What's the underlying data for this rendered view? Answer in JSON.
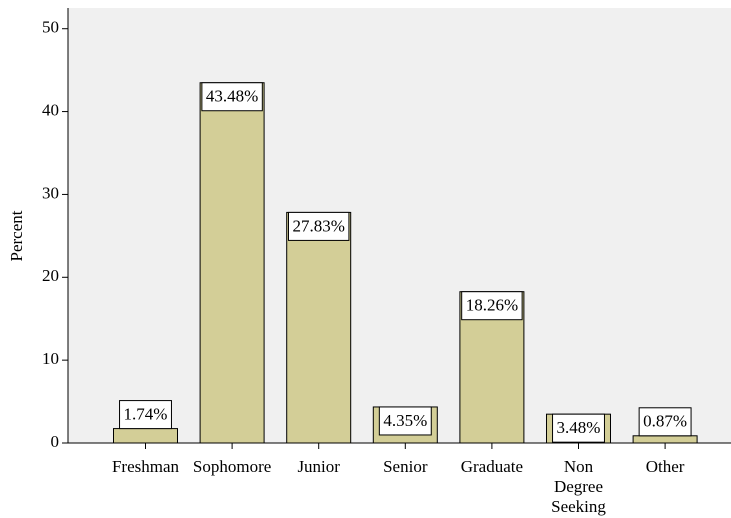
{
  "chart_data": {
    "type": "bar",
    "y_label": "Percent",
    "categories": [
      "Freshman",
      "Sophomore",
      "Junior",
      "Senior",
      "Graduate",
      "Non Degree Seeking",
      "Other"
    ],
    "values": [
      1.74,
      43.48,
      27.83,
      4.35,
      18.26,
      3.48,
      0.87
    ],
    "value_labels": [
      "1.74%",
      "43.48%",
      "27.83%",
      "4.35%",
      "18.26%",
      "3.48%",
      "0.87%"
    ],
    "color": "#d3ce97",
    "ylim": [
      0,
      52.5
    ],
    "yticks": [
      0,
      10,
      20,
      30,
      40,
      50
    ]
  }
}
